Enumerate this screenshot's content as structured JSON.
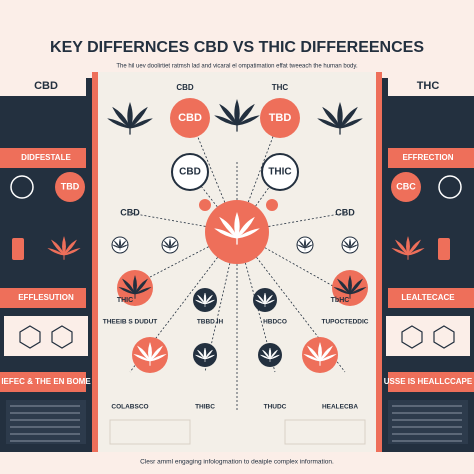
{
  "header": {
    "title": "KEY DIFFERNCES  CBD  VS THIC  DIFFEREENCES",
    "subtitle": "The hil uev doolirtiet ratmsh lad and vicaral el ompatimation effat tweeach the human body."
  },
  "left": {
    "items": [
      "CBD",
      "DIDFESTALE",
      "EFFLESUTION",
      "IEFEC & THE EN BOME"
    ],
    "badge": "TBD"
  },
  "right": {
    "items": [
      "THC",
      "EFFRECTION",
      "LEALTECACE",
      "USSE IS HEALLCCAPE"
    ],
    "badge": "CBC"
  },
  "center": {
    "labels": [
      "CBD",
      "THC",
      "CBD",
      "TBD",
      "CBD",
      "THIC",
      "CBD",
      "CBD",
      "THIC",
      "TbHC",
      "THEEIB S DUDUT",
      "TBBD IH",
      "HBDCO",
      "TUPOCTEDDIC",
      "COLABSCO",
      "THIBC",
      "THUDC",
      "HEALECBA"
    ]
  },
  "footer": {
    "text": "Clesr amml engaging infologmation to deaiple complex information."
  }
}
